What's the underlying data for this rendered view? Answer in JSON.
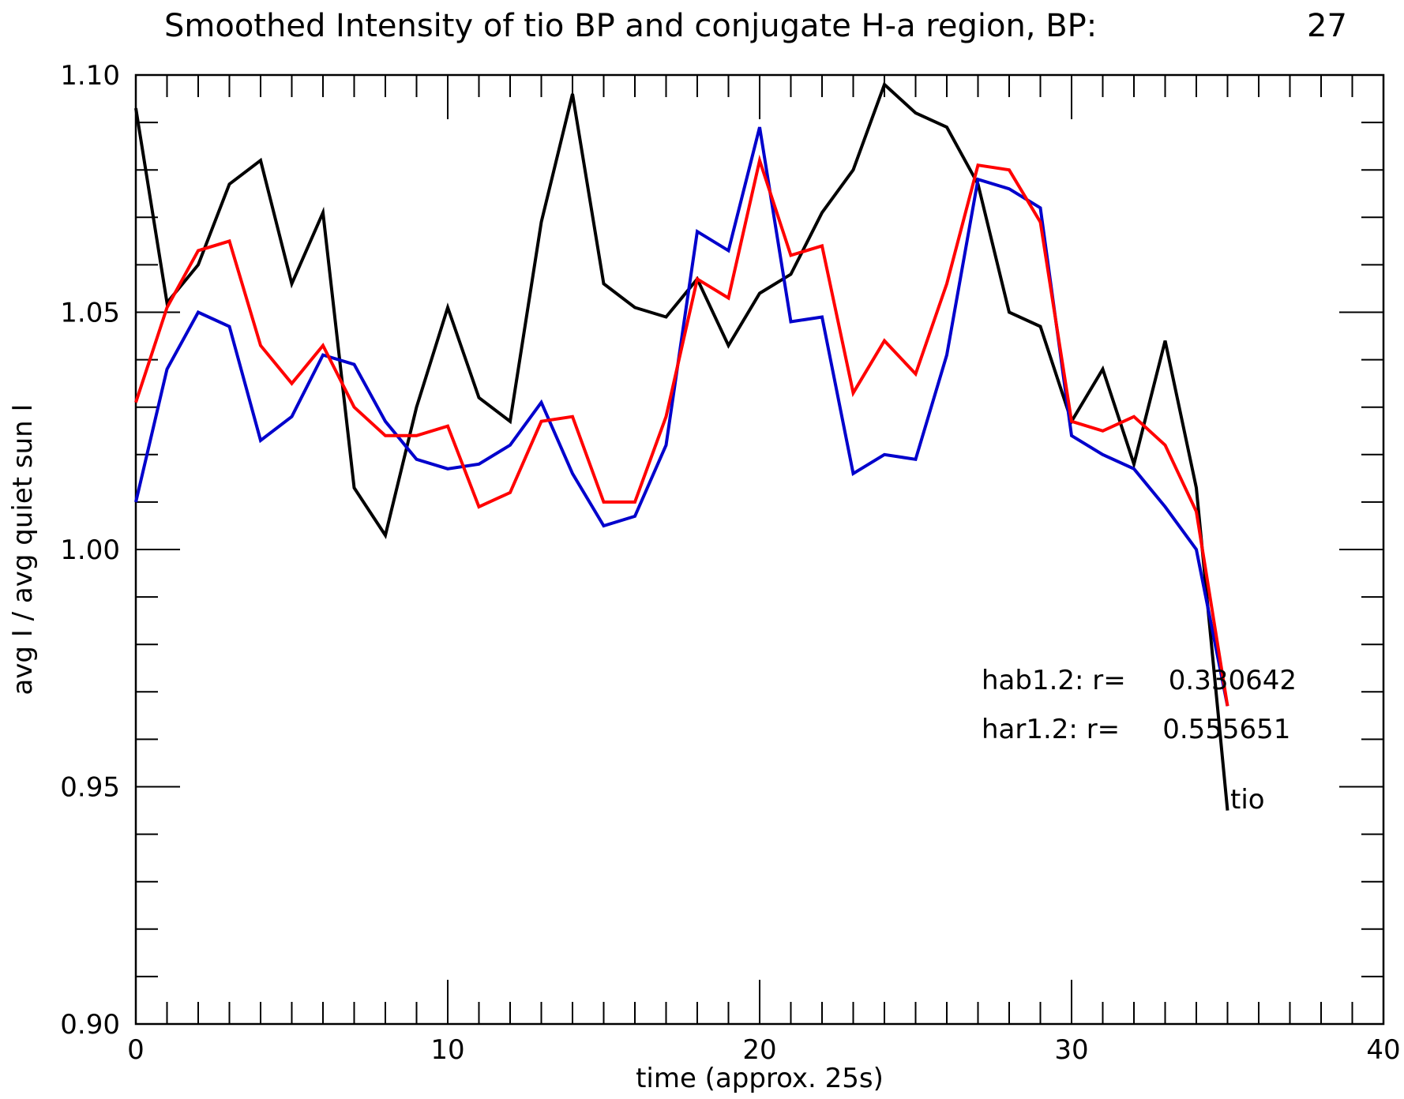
{
  "chart_data": {
    "type": "line",
    "title": "Smoothed Intensity of tio BP and conjugate H-a region, BP:",
    "bp_number": "27",
    "xlabel": "time (approx. 25s)",
    "ylabel": "avg I / avg quiet sun I",
    "xlim": [
      0,
      40
    ],
    "ylim": [
      0.9,
      1.1
    ],
    "x_ticks": [
      "0",
      "10",
      "20",
      "30",
      "40"
    ],
    "y_ticks": [
      "0.90",
      "0.95",
      "1.00",
      "1.05",
      "1.10"
    ],
    "grid": false,
    "x": [
      0,
      1,
      2,
      3,
      4,
      5,
      6,
      7,
      8,
      9,
      10,
      11,
      12,
      13,
      14,
      15,
      16,
      17,
      18,
      19,
      20,
      21,
      22,
      23,
      24,
      25,
      26,
      27,
      28,
      29,
      30,
      31,
      32,
      33,
      34,
      35
    ],
    "series": [
      {
        "name": "tio",
        "color": "#000000",
        "values": [
          1.093,
          1.052,
          1.06,
          1.077,
          1.082,
          1.056,
          1.071,
          1.013,
          1.003,
          1.03,
          1.051,
          1.032,
          1.027,
          1.069,
          1.096,
          1.056,
          1.051,
          1.049,
          1.057,
          1.043,
          1.054,
          1.058,
          1.071,
          1.08,
          1.098,
          1.092,
          1.089,
          1.077,
          1.05,
          1.047,
          1.027,
          1.038,
          1.018,
          1.044,
          1.013,
          0.945
        ]
      },
      {
        "name": "hab1.2",
        "color": "#0000cc",
        "values": [
          1.01,
          1.038,
          1.05,
          1.047,
          1.023,
          1.028,
          1.041,
          1.039,
          1.027,
          1.019,
          1.017,
          1.018,
          1.022,
          1.031,
          1.016,
          1.005,
          1.007,
          1.022,
          1.067,
          1.063,
          1.089,
          1.048,
          1.049,
          1.016,
          1.02,
          1.019,
          1.041,
          1.078,
          1.076,
          1.072,
          1.024,
          1.02,
          1.017,
          1.009,
          1.0,
          0.967
        ]
      },
      {
        "name": "har1.2",
        "color": "#ff0000",
        "values": [
          1.031,
          1.051,
          1.063,
          1.065,
          1.043,
          1.035,
          1.043,
          1.03,
          1.024,
          1.024,
          1.026,
          1.009,
          1.012,
          1.027,
          1.028,
          1.01,
          1.01,
          1.028,
          1.057,
          1.053,
          1.082,
          1.062,
          1.064,
          1.033,
          1.044,
          1.037,
          1.056,
          1.081,
          1.08,
          1.069,
          1.027,
          1.025,
          1.028,
          1.022,
          1.008,
          0.967
        ]
      }
    ],
    "annotations": {
      "hab": "hab1.2: r=     0.330642",
      "har": "har1.2: r=     0.555651",
      "tio": "tio"
    }
  }
}
